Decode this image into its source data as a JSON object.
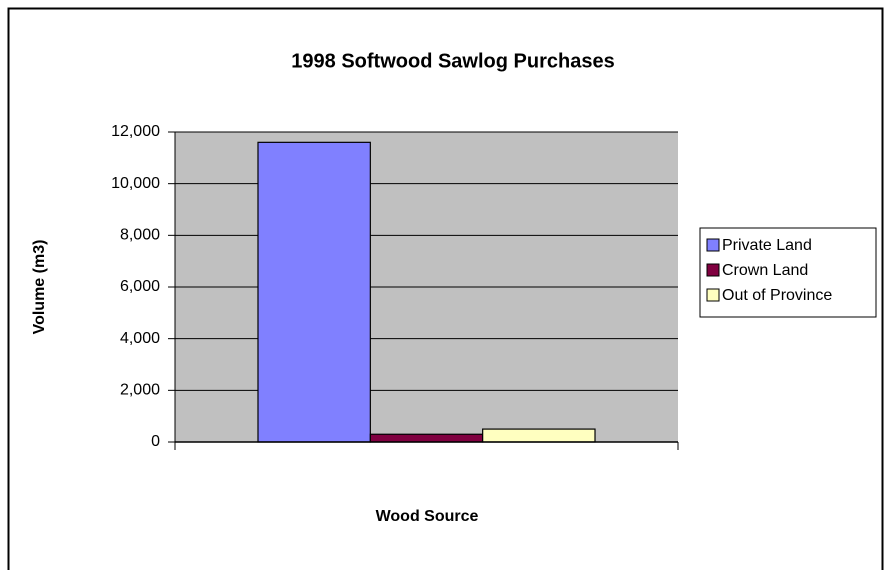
{
  "chart_data": {
    "type": "bar",
    "title": "1998 Softwood Sawlog Purchases",
    "x_label": "Wood Source",
    "y_label": "Volume (m3)",
    "categories": [
      null
    ],
    "series": [
      {
        "name": "Private Land",
        "color": "#8080ff",
        "values": [
          11600
        ]
      },
      {
        "name": "Crown Land",
        "color": "#800040",
        "values": [
          300
        ]
      },
      {
        "name": "Out of Province",
        "color": "#ffffc0",
        "values": [
          500
        ]
      }
    ],
    "ylim": [
      0,
      12000
    ],
    "yticks": [
      0,
      {
        "value": 2000,
        "label": "2,000"
      },
      {
        "value": 4000,
        "label": "4,000"
      },
      {
        "value": 6000,
        "label": "6,000"
      },
      {
        "value": 8000,
        "label": "8,000"
      },
      {
        "value": 10000,
        "label": "10,000"
      },
      {
        "value": 12000,
        "label": "12,000"
      }
    ],
    "grid": true,
    "legend": "right"
  }
}
